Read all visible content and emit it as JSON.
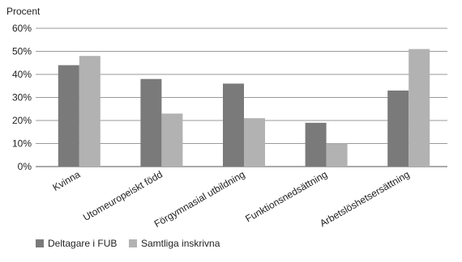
{
  "chart_data": {
    "type": "bar",
    "ylabel": "Procent",
    "ylim": [
      0,
      60
    ],
    "ytick_labels": [
      "0%",
      "10%",
      "20%",
      "30%",
      "40%",
      "50%",
      "60%"
    ],
    "grid": true,
    "legend_position": "bottom-left",
    "categories": [
      "Kvinna",
      "Utomeuropeiskt född",
      "Förgymnasial utbildning",
      "Funktionsnedsättning",
      "Arbetslöshetsersättning"
    ],
    "series": [
      {
        "name": "Deltagare i FUB",
        "color": "#7a7a7a",
        "values": [
          44,
          38,
          36,
          19,
          33
        ]
      },
      {
        "name": "Samtliga inskrivna",
        "color": "#b2b2b2",
        "values": [
          48,
          23,
          21,
          10,
          51
        ]
      }
    ]
  }
}
